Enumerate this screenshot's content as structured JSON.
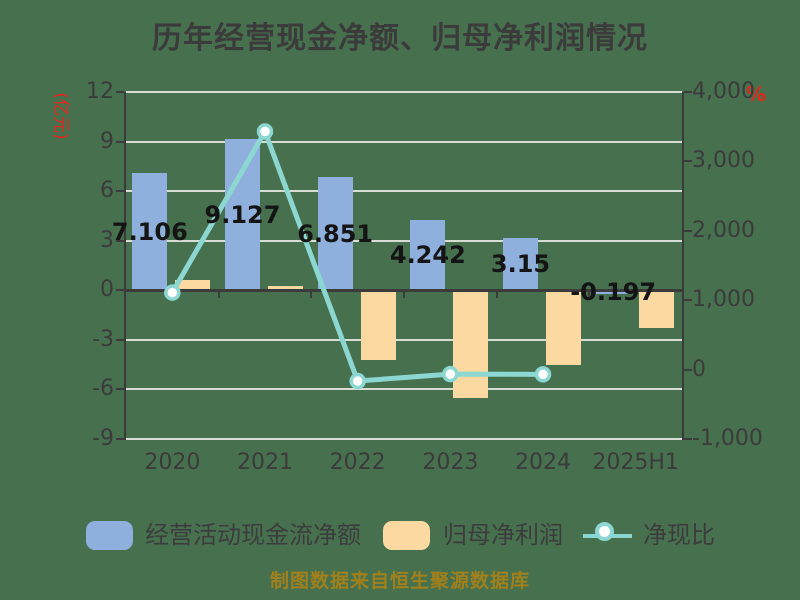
{
  "colors": {
    "background": "#47714E",
    "gridline": "#D8DDD3",
    "axis_dark": "#3B3B3B",
    "red_axis_label": "#E8251A",
    "bar_blue": "#8FB0DC",
    "bar_yellow": "#FBD9A0",
    "line_teal": "#8CD7D1",
    "value_label": "#141414",
    "footer_text": "#A1801C"
  },
  "chart_data": {
    "type": "combo-bar-line",
    "title": "历年经营现金净额、归母净利润情况",
    "footer": "制图数据来自恒生聚源数据库",
    "categories": [
      "2020",
      "2021",
      "2022",
      "2023",
      "2024",
      "2025H1"
    ],
    "left_axis": {
      "label": "(亿元)",
      "ticks": [
        12,
        9,
        6,
        3,
        0,
        -3,
        -6,
        -9
      ],
      "range": [
        12,
        -9
      ]
    },
    "right_axis": {
      "label": "%",
      "ticks": [
        "4,000",
        "3,000",
        "2,000",
        "1,000",
        "0",
        "-1,000"
      ],
      "range": [
        4000,
        -1000
      ]
    },
    "series": [
      {
        "key": "ocf",
        "name": "经营活动现金流净额",
        "type": "bar",
        "axis": "left",
        "color": "#8FB0DC",
        "values": [
          7.106,
          9.127,
          6.851,
          4.242,
          3.15,
          -0.197
        ],
        "labels": [
          "7.106",
          "9.127",
          "6.851",
          "4.242",
          "3.15",
          "-0.197"
        ]
      },
      {
        "key": "netprofit",
        "name": "归母净利润",
        "type": "bar",
        "axis": "left",
        "color": "#FBD9A0",
        "values": [
          0.64,
          0.27,
          -4.2,
          -6.5,
          -4.5,
          -2.3
        ]
      },
      {
        "key": "cash_ratio",
        "name": "净现比",
        "type": "line",
        "axis": "right",
        "color": "#8CD7D1",
        "values": [
          1110,
          3430,
          -165,
          -65,
          -68,
          null
        ]
      }
    ],
    "grid": true,
    "legend_position": "bottom"
  }
}
